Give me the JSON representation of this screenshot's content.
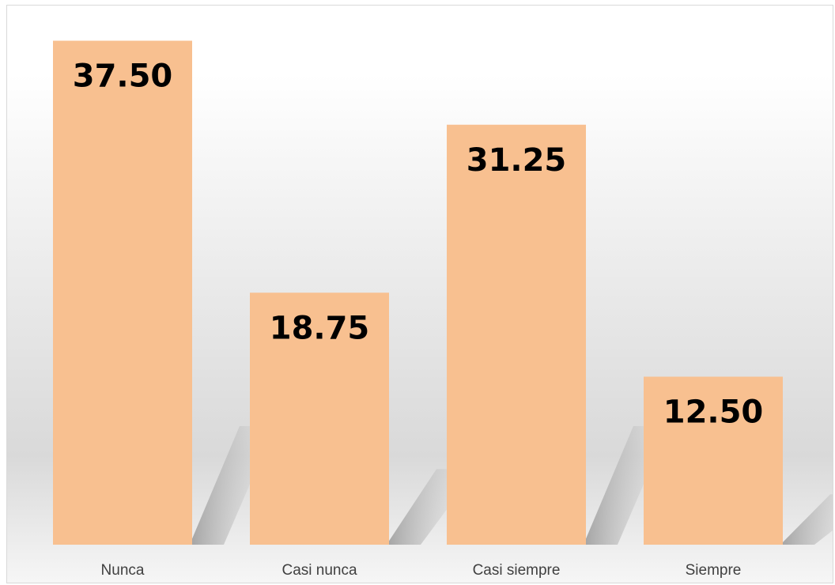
{
  "chart_data": {
    "type": "bar",
    "categories": [
      "Nunca",
      "Casi nunca",
      "Casi siempre",
      "Siempre"
    ],
    "values": [
      37.5,
      18.75,
      31.25,
      12.5
    ],
    "data_labels": [
      "37.50",
      "18.75",
      "31.25",
      "12.50"
    ],
    "title": "",
    "xlabel": "",
    "ylabel": "",
    "ylim": [
      0,
      40
    ],
    "grid": false,
    "legend": "none",
    "bar_color": "#F8C090",
    "label_color": "#000000",
    "category_label_color": "#404040"
  }
}
